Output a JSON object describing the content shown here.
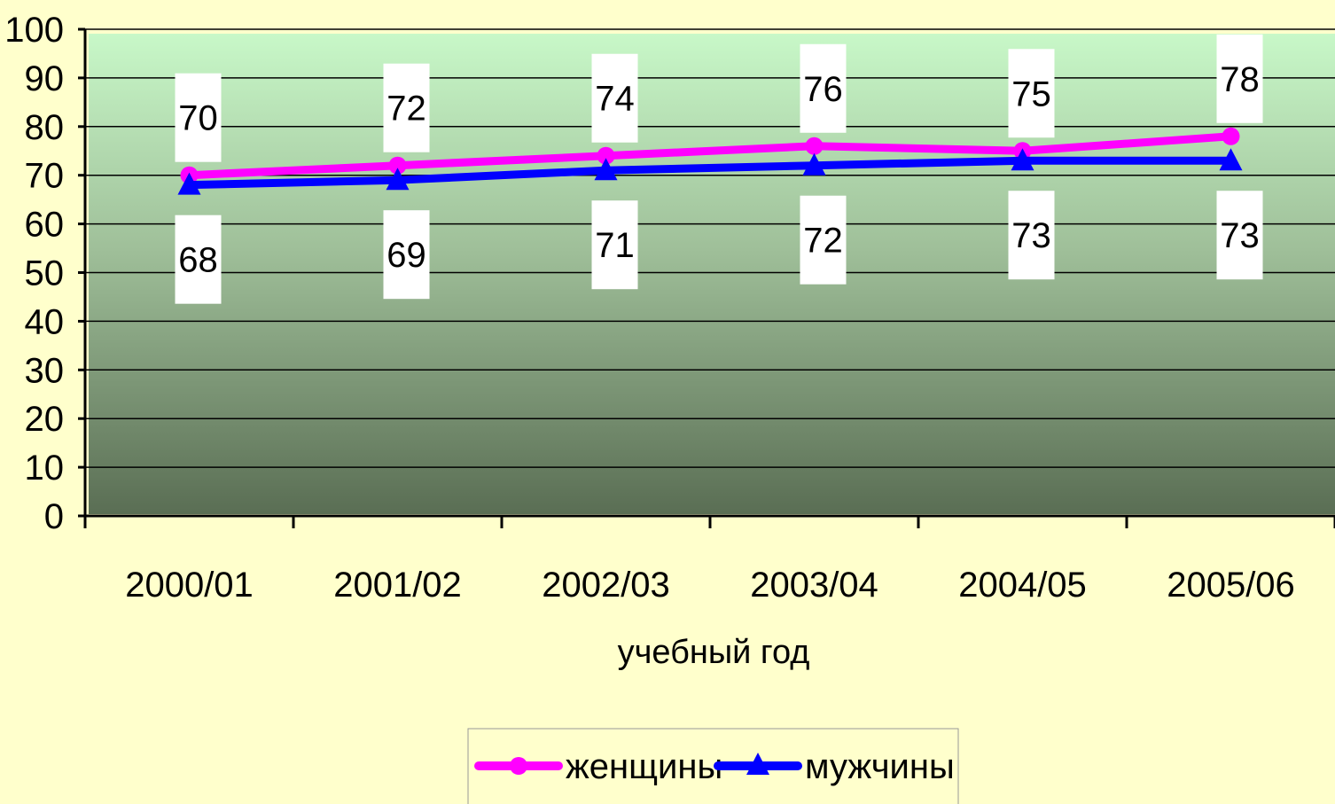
{
  "chart_data": {
    "type": "line",
    "categories": [
      "2000/01",
      "2001/02",
      "2002/03",
      "2003/04",
      "2004/05",
      "2005/06"
    ],
    "series": [
      {
        "name": "женщины",
        "values": [
          70,
          72,
          74,
          76,
          75,
          78
        ],
        "color": "#ff00ff",
        "marker": "circle",
        "label_position": "above"
      },
      {
        "name": "мужчины",
        "values": [
          68,
          69,
          71,
          72,
          73,
          73
        ],
        "color": "#0000ff",
        "marker": "triangle",
        "label_position": "below"
      }
    ],
    "title": "",
    "xlabel": "учебный год",
    "ylabel": "",
    "ylim": [
      0,
      100
    ],
    "yticks": [
      0,
      10,
      20,
      30,
      40,
      50,
      60,
      70,
      80,
      90,
      100
    ],
    "grid": true,
    "legend": "bottom-center",
    "colors": {
      "background": "#ffffcc",
      "plot_top": "#c8f8c8",
      "plot_bottom": "#5a6e54"
    }
  }
}
